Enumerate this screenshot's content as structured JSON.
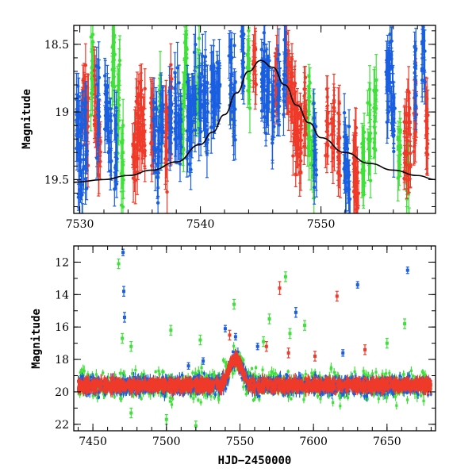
{
  "chart_data": [
    {
      "type": "scatter",
      "title": "",
      "xlabel": "",
      "ylabel": "Magnitude",
      "xlim": [
        7529.5,
        7559.5
      ],
      "ylim": [
        19.75,
        18.36
      ],
      "y_inverted": true,
      "x_ticks": [
        "7530",
        "7540",
        "7550"
      ],
      "x_tick_values": [
        7530,
        7540,
        7550
      ],
      "y_ticks": [
        "18.5",
        "19",
        "19.5"
      ],
      "y_tick_values": [
        18.5,
        19,
        19.5
      ],
      "grid": false,
      "colors": {
        "blue": "#1a5fe0",
        "red": "#ef3a2a",
        "green": "#3fe03a",
        "model": "#000000"
      },
      "model_curve": {
        "name": "",
        "x": [
          7529.5,
          7532,
          7534,
          7536,
          7538,
          7540,
          7541,
          7542,
          7543,
          7544,
          7545,
          7546,
          7547,
          7548,
          7549,
          7550,
          7552,
          7554,
          7556,
          7558,
          7559.5
        ],
        "y": [
          19.52,
          19.5,
          19.47,
          19.43,
          19.37,
          19.24,
          19.15,
          19.02,
          18.86,
          18.7,
          18.62,
          18.67,
          18.8,
          18.95,
          19.08,
          19.19,
          19.3,
          19.38,
          19.43,
          19.47,
          19.5
        ]
      },
      "series": [
        {
          "color": "blue",
          "x": [
            7529.8,
            7530.0,
            7530.2,
            7530.5,
            7531.5,
            7532.2,
            7532.5,
            7533.0,
            7536.2,
            7536.5,
            7536.8,
            7537.5,
            7538.0,
            7538.3,
            7539.0,
            7539.2,
            7539.5,
            7540.0,
            7540.3,
            7540.5,
            7541.0,
            7541.2,
            7541.5,
            7542.5,
            7542.8,
            7543.5,
            7545.2,
            7545.4,
            7545.6,
            7546.0,
            7546.5,
            7547.0,
            7549.5,
            7552.0,
            7552.3,
            7555.5,
            7555.8,
            7556.0,
            7557.8,
            7558.5
          ],
          "y": [
            19.1,
            19.4,
            19.3,
            19.2,
            19.0,
            18.95,
            19.2,
            19.3,
            19.2,
            19.3,
            19.0,
            19.1,
            18.95,
            19.1,
            19.0,
            19.2,
            18.9,
            18.95,
            18.9,
            19.0,
            18.85,
            19.0,
            18.8,
            18.85,
            18.9,
            18.55,
            18.7,
            18.8,
            18.9,
            19.0,
            18.9,
            18.7,
            19.2,
            19.4,
            19.6,
            18.8,
            18.7,
            19.1,
            18.75,
            18.6
          ],
          "err": [
            0.15,
            0.15,
            0.15,
            0.15,
            0.15,
            0.15,
            0.15,
            0.15,
            0.15,
            0.15,
            0.15,
            0.15,
            0.15,
            0.15,
            0.15,
            0.15,
            0.15,
            0.15,
            0.15,
            0.15,
            0.15,
            0.15,
            0.15,
            0.15,
            0.15,
            0.15,
            0.15,
            0.15,
            0.15,
            0.15,
            0.15,
            0.15,
            0.15,
            0.15,
            0.15,
            0.15,
            0.15,
            0.15,
            0.15,
            0.15
          ]
        },
        {
          "color": "red",
          "x": [
            7530.3,
            7530.6,
            7531.3,
            7531.6,
            7534.5,
            7534.8,
            7535.0,
            7535.3,
            7536.0,
            7537.2,
            7537.5,
            7544.5,
            7546.3,
            7547.2,
            7547.5,
            7547.8,
            7548.0,
            7548.3,
            7548.7,
            7550.5,
            7551.0,
            7551.5,
            7552.8,
            7553.0,
            7557.0,
            7557.3,
            7557.8,
            7558.8
          ],
          "y": [
            18.9,
            19.0,
            19.1,
            19.3,
            19.3,
            19.1,
            19.0,
            19.2,
            19.1,
            19.2,
            19.0,
            18.6,
            18.7,
            18.65,
            18.8,
            19.0,
            19.1,
            19.2,
            19.0,
            19.1,
            19.2,
            19.3,
            19.4,
            19.5,
            19.3,
            19.1,
            19.0,
            19.1
          ],
          "err": [
            0.15,
            0.15,
            0.15,
            0.15,
            0.15,
            0.15,
            0.15,
            0.15,
            0.15,
            0.15,
            0.15,
            0.15,
            0.15,
            0.15,
            0.15,
            0.15,
            0.15,
            0.15,
            0.15,
            0.15,
            0.15,
            0.15,
            0.15,
            0.15,
            0.15,
            0.15,
            0.15,
            0.15
          ]
        },
        {
          "color": "green",
          "x": [
            7531.0,
            7532.8,
            7533.2,
            7533.5,
            7536.7,
            7538.5,
            7538.8,
            7539.8,
            7544.0,
            7549.0,
            7549.3,
            7553.5,
            7554.0,
            7554.5,
            7556.5,
            7557.2
          ],
          "y": [
            18.7,
            18.6,
            18.9,
            19.4,
            19.0,
            19.1,
            18.6,
            18.8,
            18.7,
            19.1,
            19.3,
            19.4,
            19.2,
            19.0,
            19.3,
            19.5
          ],
          "err": [
            0.15,
            0.15,
            0.15,
            0.15,
            0.15,
            0.15,
            0.15,
            0.15,
            0.15,
            0.15,
            0.15,
            0.15,
            0.15,
            0.15,
            0.15,
            0.15
          ]
        }
      ]
    },
    {
      "type": "scatter",
      "title": "",
      "xlabel": "HJD−2450000",
      "ylabel": "Magnitude",
      "xlim": [
        7437,
        7683
      ],
      "ylim": [
        22.4,
        11.0
      ],
      "y_inverted": true,
      "x_ticks": [
        "7450",
        "7500",
        "7550",
        "7600",
        "7650"
      ],
      "x_tick_values": [
        7450,
        7500,
        7550,
        7600,
        7650
      ],
      "y_ticks": [
        "12",
        "14",
        "16",
        "18",
        "20",
        "22"
      ],
      "y_tick_values": [
        12,
        14,
        16,
        18,
        20,
        22
      ],
      "grid": false,
      "colors": {
        "blue": "#1a5fe0",
        "red": "#ef3a2a",
        "green": "#3fe03a"
      },
      "baseline_mag": 19.6,
      "series": [
        {
          "color": "blue",
          "x": [
            7470.5,
            7471.0,
            7471.5,
            7515,
            7525,
            7540,
            7547,
            7562,
            7588,
            7620,
            7630,
            7664
          ],
          "y": [
            11.4,
            13.8,
            15.4,
            18.4,
            18.1,
            16.1,
            16.6,
            17.2,
            15.1,
            17.6,
            13.4,
            12.5
          ],
          "err": [
            0.2,
            0.3,
            0.3,
            0.2,
            0.2,
            0.2,
            0.2,
            0.2,
            0.3,
            0.2,
            0.2,
            0.2
          ]
        },
        {
          "color": "red",
          "x": [
            7543,
            7568,
            7577,
            7583,
            7601,
            7616,
            7635
          ],
          "y": [
            16.5,
            17.2,
            13.6,
            17.6,
            17.8,
            14.1,
            17.4
          ],
          "err": [
            0.3,
            0.3,
            0.4,
            0.3,
            0.3,
            0.3,
            0.3
          ]
        },
        {
          "color": "green",
          "x": [
            7467.5,
            7470,
            7476,
            7503,
            7523,
            7546,
            7566,
            7570,
            7581,
            7584,
            7594,
            7650,
            7662,
            7476,
            7500,
            7520
          ],
          "y": [
            12.1,
            16.7,
            17.2,
            16.2,
            16.8,
            14.6,
            16.9,
            15.5,
            12.9,
            16.4,
            15.9,
            17.0,
            15.8,
            21.3,
            21.7,
            22.1
          ],
          "err": [
            0.3,
            0.3,
            0.3,
            0.3,
            0.3,
            0.3,
            0.3,
            0.3,
            0.3,
            0.3,
            0.3,
            0.3,
            0.3,
            0.3,
            0.3,
            0.3
          ]
        }
      ]
    }
  ]
}
